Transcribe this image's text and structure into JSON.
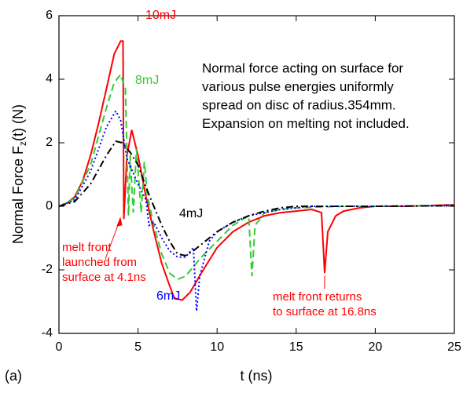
{
  "chart_data": {
    "type": "line",
    "panel_label": "(a)",
    "xlabel": "t   (ns)",
    "ylabel": "Normal Force F",
    "ylabel_sub": "z",
    "ylabel_end": "(t)   (N)",
    "xlim": [
      0,
      25
    ],
    "xticks": [
      0,
      5,
      10,
      15,
      20,
      25
    ],
    "ylim": [
      -4,
      6
    ],
    "yticks": [
      -4,
      -2,
      0,
      2,
      4,
      6
    ],
    "note": [
      "Normal force acting on surface for",
      "various pulse energies uniformly",
      "spread on disc of radius.354mm.",
      "Expansion on melting not included."
    ],
    "annotations": [
      {
        "lines": [
          "melt front",
          "launched from",
          "surface at 4.1ns"
        ]
      },
      {
        "lines": [
          "melt front returns",
          "to surface at 16.8ns"
        ]
      }
    ],
    "series": [
      {
        "name": "10mJ",
        "color": "#ff0000",
        "dash": "solid",
        "x": [
          0,
          0.5,
          1,
          1.5,
          2,
          2.5,
          3,
          3.5,
          3.9,
          4.05,
          4.1,
          4.3,
          4.6,
          5,
          5.5,
          6,
          6.5,
          7,
          7.3,
          7.8,
          8.3,
          9,
          10,
          11,
          12,
          13,
          14,
          15,
          16,
          16.6,
          16.8,
          17,
          17.5,
          18,
          19,
          20,
          22,
          25
        ],
        "values": [
          0,
          0.1,
          0.3,
          0.8,
          1.6,
          2.6,
          3.7,
          4.8,
          5.2,
          5.2,
          -0.4,
          1.6,
          2.4,
          1.6,
          0.3,
          -0.8,
          -1.8,
          -2.5,
          -2.9,
          -2.95,
          -2.7,
          -2.1,
          -1.3,
          -0.8,
          -0.5,
          -0.3,
          -0.2,
          -0.15,
          -0.1,
          -0.2,
          -2.1,
          -0.8,
          -0.3,
          -0.15,
          -0.05,
          0,
          0,
          0.05
        ]
      },
      {
        "name": "8mJ",
        "color": "#33cc33",
        "dash": "dash",
        "x": [
          0,
          1,
          2,
          3,
          3.5,
          3.9,
          4.2,
          4.4,
          4.5,
          4.7,
          4.9,
          5.2,
          5.4,
          5.6,
          6,
          6.5,
          7,
          7.5,
          8,
          8.5,
          9,
          10,
          11,
          12,
          12.2,
          12.4,
          13,
          14,
          15,
          16,
          18,
          20,
          25
        ],
        "values": [
          0,
          0.25,
          1.3,
          3.1,
          3.9,
          4.15,
          3.7,
          -0.3,
          1.6,
          -0.2,
          1.8,
          -0.2,
          1.4,
          0.3,
          -0.6,
          -1.5,
          -2.1,
          -2.3,
          -2.2,
          -1.9,
          -1.6,
          -1.1,
          -0.6,
          -0.3,
          -2.2,
          -0.6,
          -0.2,
          -0.1,
          -0.05,
          -0.03,
          0,
          0,
          0.03
        ]
      },
      {
        "name": "6mJ",
        "color": "#0000ff",
        "dash": "dot",
        "x": [
          0,
          1,
          2,
          3,
          3.6,
          3.9,
          4.3,
          5,
          5.5,
          5.7,
          6,
          6.5,
          7,
          7.5,
          8,
          8.5,
          8.7,
          8.9,
          9.5,
          10,
          11,
          12,
          14,
          16,
          20,
          25
        ],
        "values": [
          0,
          0.2,
          1.1,
          2.5,
          3.0,
          2.7,
          1.5,
          0.7,
          0.2,
          -0.6,
          -0.5,
          -1.0,
          -1.4,
          -1.6,
          -1.6,
          -1.3,
          -3.3,
          -2.2,
          -1.1,
          -0.8,
          -0.5,
          -0.3,
          -0.1,
          0,
          0,
          0.02
        ]
      },
      {
        "name": "4mJ",
        "color": "#000000",
        "dash": "dashdot",
        "x": [
          0,
          1,
          2,
          3,
          3.6,
          4,
          4.5,
          5,
          5.5,
          6,
          6.5,
          7,
          7.5,
          8,
          8.5,
          9,
          10,
          11,
          12,
          13,
          14,
          15,
          17,
          20,
          25
        ],
        "values": [
          0,
          0.15,
          0.7,
          1.6,
          2.05,
          2.0,
          1.7,
          1.3,
          0.6,
          0,
          -0.6,
          -1.1,
          -1.5,
          -1.55,
          -1.4,
          -1.2,
          -0.8,
          -0.5,
          -0.3,
          -0.15,
          -0.05,
          0,
          0,
          0,
          0.02
        ]
      }
    ]
  }
}
